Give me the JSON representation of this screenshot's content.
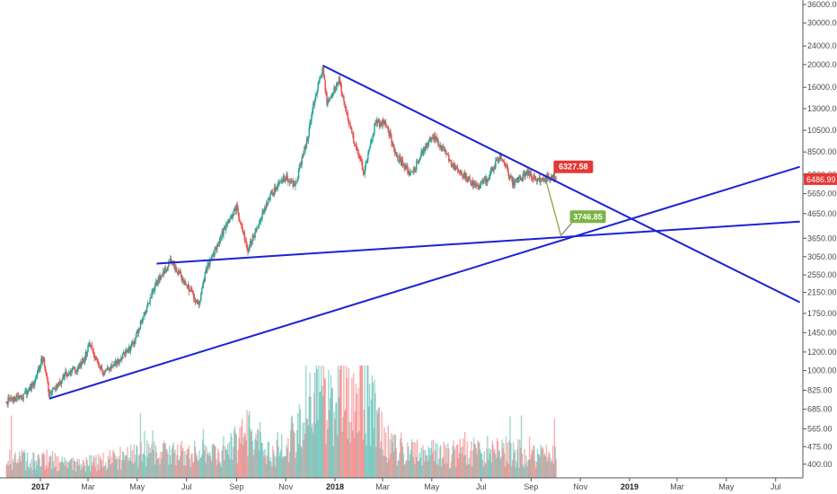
{
  "chart_data": {
    "type": "candlestick",
    "y_scale": "log",
    "ylim": [
      350,
      36000
    ],
    "y_ticks": [
      "400.00",
      "475.00",
      "565.00",
      "685.00",
      "825.00",
      "1000.00",
      "1200.00",
      "1450.00",
      "1750.00",
      "2150.00",
      "2550.00",
      "3050.00",
      "3650.00",
      "4650.00",
      "5650.00",
      "6800.00",
      "8500.00",
      "10500.00",
      "13000.00",
      "16000.00",
      "20000.00",
      "24000.00",
      "30000.00",
      "36000.00"
    ],
    "x_ticks": [
      {
        "date": "2017-01-01",
        "label": "2017",
        "year": true
      },
      {
        "date": "2017-03-01",
        "label": "Mar",
        "year": false
      },
      {
        "date": "2017-05-01",
        "label": "May",
        "year": false
      },
      {
        "date": "2017-07-01",
        "label": "Jul",
        "year": false
      },
      {
        "date": "2017-09-01",
        "label": "Sep",
        "year": false
      },
      {
        "date": "2017-11-01",
        "label": "Nov",
        "year": false
      },
      {
        "date": "2018-01-01",
        "label": "2018",
        "year": true
      },
      {
        "date": "2018-03-01",
        "label": "Mar",
        "year": false
      },
      {
        "date": "2018-05-01",
        "label": "May",
        "year": false
      },
      {
        "date": "2018-07-01",
        "label": "Jul",
        "year": false
      },
      {
        "date": "2018-09-01",
        "label": "Sep",
        "year": false
      },
      {
        "date": "2018-11-01",
        "label": "Nov",
        "year": false
      },
      {
        "date": "2019-01-01",
        "label": "2019",
        "year": true
      },
      {
        "date": "2019-03-01",
        "label": "Mar",
        "year": false
      },
      {
        "date": "2019-05-01",
        "label": "May",
        "year": false
      },
      {
        "date": "2019-07-01",
        "label": "Jul",
        "year": false
      }
    ],
    "price_series": [
      [
        "2016-11-20",
        740
      ],
      [
        "2016-12-10",
        770
      ],
      [
        "2016-12-25",
        890
      ],
      [
        "2017-01-04",
        1150
      ],
      [
        "2017-01-12",
        790
      ],
      [
        "2017-02-01",
        960
      ],
      [
        "2017-02-20",
        1050
      ],
      [
        "2017-03-03",
        1280
      ],
      [
        "2017-03-20",
        980
      ],
      [
        "2017-04-05",
        1080
      ],
      [
        "2017-04-25",
        1290
      ],
      [
        "2017-05-10",
        1750
      ],
      [
        "2017-05-25",
        2350
      ],
      [
        "2017-06-12",
        2950
      ],
      [
        "2017-06-25",
        2500
      ],
      [
        "2017-07-16",
        1900
      ],
      [
        "2017-07-25",
        2650
      ],
      [
        "2017-08-05",
        3250
      ],
      [
        "2017-08-20",
        4200
      ],
      [
        "2017-09-01",
        4900
      ],
      [
        "2017-09-15",
        3250
      ],
      [
        "2017-09-30",
        4350
      ],
      [
        "2017-10-15",
        5700
      ],
      [
        "2017-11-01",
        6700
      ],
      [
        "2017-11-12",
        6000
      ],
      [
        "2017-11-28",
        9800
      ],
      [
        "2017-12-07",
        14500
      ],
      [
        "2017-12-17",
        19200
      ],
      [
        "2017-12-22",
        13800
      ],
      [
        "2018-01-06",
        17100
      ],
      [
        "2018-01-18",
        11200
      ],
      [
        "2018-02-06",
        7000
      ],
      [
        "2018-02-20",
        11200
      ],
      [
        "2018-03-05",
        11400
      ],
      [
        "2018-03-18",
        8200
      ],
      [
        "2018-04-06",
        6800
      ],
      [
        "2018-04-25",
        9300
      ],
      [
        "2018-05-05",
        9800
      ],
      [
        "2018-05-28",
        7400
      ],
      [
        "2018-06-12",
        6600
      ],
      [
        "2018-06-28",
        6000
      ],
      [
        "2018-07-10",
        6700
      ],
      [
        "2018-07-25",
        8300
      ],
      [
        "2018-08-10",
        6200
      ],
      [
        "2018-08-30",
        7000
      ],
      [
        "2018-09-07",
        6400
      ],
      [
        "2018-09-22",
        6700
      ],
      [
        "2018-10-02",
        6480
      ]
    ],
    "volume_series": [
      [
        "2017-01-05",
        0.22
      ],
      [
        "2017-02-15",
        0.15
      ],
      [
        "2017-03-20",
        0.2
      ],
      [
        "2017-05-25",
        0.3
      ],
      [
        "2017-06-15",
        0.28
      ],
      [
        "2017-07-15",
        0.33
      ],
      [
        "2017-08-15",
        0.25
      ],
      [
        "2017-09-15",
        0.55
      ],
      [
        "2017-10-15",
        0.3
      ],
      [
        "2017-11-12",
        0.5
      ],
      [
        "2017-12-10",
        1.0
      ],
      [
        "2017-12-22",
        0.9
      ],
      [
        "2018-01-16",
        1.0
      ],
      [
        "2018-02-06",
        1.0
      ],
      [
        "2018-03-10",
        0.35
      ],
      [
        "2018-04-12",
        0.35
      ],
      [
        "2018-05-15",
        0.28
      ],
      [
        "2018-06-24",
        0.3
      ],
      [
        "2018-07-20",
        0.35
      ],
      [
        "2018-08-14",
        0.3
      ],
      [
        "2018-09-05",
        0.25
      ],
      [
        "2018-09-25",
        0.25
      ]
    ],
    "trendlines": [
      {
        "name": "descending-resistance",
        "from": [
          "2017-12-17",
          19800
        ],
        "to": [
          "2019-07-31",
          1950
        ]
      },
      {
        "name": "ascending-support",
        "from": [
          "2017-01-12",
          760
        ],
        "to": [
          "2019-07-31",
          7350
        ]
      },
      {
        "name": "horizontal-support",
        "from": [
          "2017-05-25",
          2850
        ],
        "to": [
          "2019-07-31",
          4300
        ]
      }
    ],
    "projection": {
      "points": [
        [
          "2018-09-10",
          6480
        ],
        [
          "2018-09-20",
          6328
        ],
        [
          "2018-10-08",
          3747
        ]
      ],
      "labels": [
        {
          "text": "6327.58",
          "value": 6327.58,
          "color": "#e53935"
        },
        {
          "text": "3746.85",
          "value": 3746.85,
          "color": "#7cb342"
        }
      ]
    },
    "current_price": {
      "text": "6486.99",
      "value": 6486.99,
      "color": "#e53935"
    },
    "colors": {
      "up": "#26a69a",
      "down": "#ef5350",
      "trendline": "#1a23d4",
      "axis": "#555555"
    }
  }
}
